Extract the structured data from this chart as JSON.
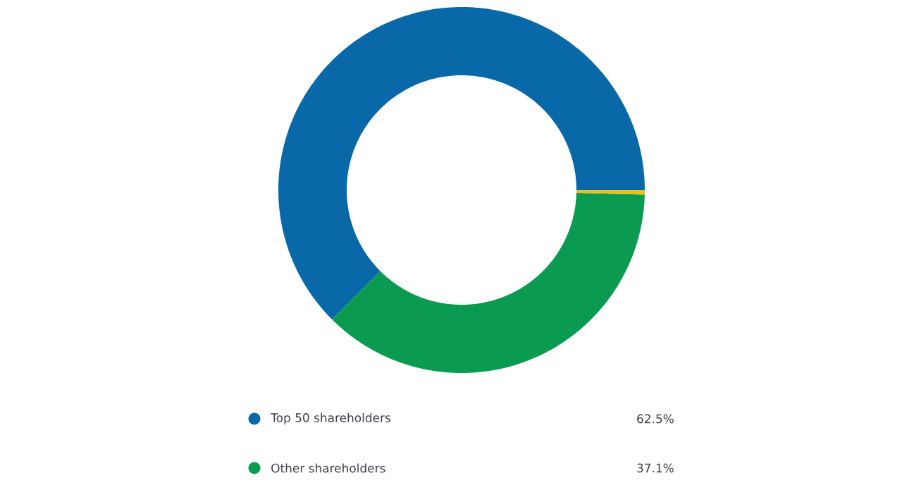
{
  "chart_data": {
    "type": "donut",
    "categories": [
      "Top 50 shareholders",
      "Other shareholders",
      null
    ],
    "values": [
      62.5,
      37.1,
      0.4
    ],
    "colors": [
      "#0868a8",
      "#0a9a50",
      "#e8c020"
    ],
    "value_labels": [
      "62.5%",
      "37.1%",
      null
    ],
    "legend": "bottom"
  }
}
